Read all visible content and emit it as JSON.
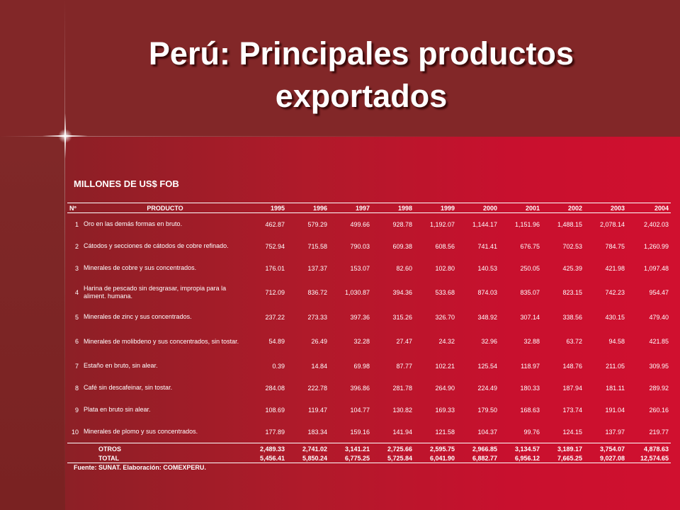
{
  "title_line1": "Perú: Principales productos",
  "title_line2": "exportados",
  "subtitle": "MILLONES DE US$ FOB",
  "table": {
    "headers": [
      "Nº",
      "PRODUCTO",
      "1995",
      "1996",
      "1997",
      "1998",
      "1999",
      "2000",
      "2001",
      "2002",
      "2003",
      "2004"
    ],
    "rows": [
      {
        "n": "1",
        "product": "Oro en las demás formas en bruto.",
        "values": [
          "462.87",
          "579.29",
          "499.66",
          "928.78",
          "1,192.07",
          "1,144.17",
          "1,151.96",
          "1,488.15",
          "2,078.14",
          "2,402.03"
        ]
      },
      {
        "n": "2",
        "product": "Cátodos y secciones de cátodos de cobre refinado.",
        "values": [
          "752.94",
          "715.58",
          "790.03",
          "609.38",
          "608.56",
          "741.41",
          "676.75",
          "702.53",
          "784.75",
          "1,260.99"
        ]
      },
      {
        "n": "3",
        "product": "Minerales de cobre y sus concentrados.",
        "values": [
          "176.01",
          "137.37",
          "153.07",
          "82.60",
          "102.80",
          "140.53",
          "250.05",
          "425.39",
          "421.98",
          "1,097.48"
        ]
      },
      {
        "n": "4",
        "product": "Harina de pescado sin desgrasar, impropia para la aliment. humana.",
        "values": [
          "712.09",
          "836.72",
          "1,030.87",
          "394.36",
          "533.68",
          "874.03",
          "835.07",
          "823.15",
          "742.23",
          "954.47"
        ]
      },
      {
        "n": "5",
        "product": "Minerales de zinc y sus concentrados.",
        "values": [
          "237.22",
          "273.33",
          "397.36",
          "315.26",
          "326.70",
          "348.92",
          "307.14",
          "338.56",
          "430.15",
          "479.40"
        ]
      },
      {
        "n": "6",
        "product": "Minerales de molibdeno y sus concentrados, sin tostar.",
        "values": [
          "54.89",
          "26.49",
          "32.28",
          "27.47",
          "24.32",
          "32.96",
          "32.88",
          "63.72",
          "94.58",
          "421.85"
        ]
      },
      {
        "n": "7",
        "product": "Estaño en bruto, sin alear.",
        "values": [
          "0.39",
          "14.84",
          "69.98",
          "87.77",
          "102.21",
          "125.54",
          "118.97",
          "148.76",
          "211.05",
          "309.95"
        ]
      },
      {
        "n": "8",
        "product": "Café sin descafeinar, sin tostar.",
        "values": [
          "284.08",
          "222.78",
          "396.86",
          "281.78",
          "264.90",
          "224.49",
          "180.33",
          "187.94",
          "181.11",
          "289.92"
        ]
      },
      {
        "n": "9",
        "product": "Plata en bruto sin alear.",
        "values": [
          "108.69",
          "119.47",
          "104.77",
          "130.82",
          "169.33",
          "179.50",
          "168.63",
          "173.74",
          "191.04",
          "260.16"
        ]
      },
      {
        "n": "10",
        "product": "Minerales de plomo y sus concentrados.",
        "values": [
          "177.89",
          "183.34",
          "159.16",
          "141.94",
          "121.58",
          "104.37",
          "99.76",
          "124.15",
          "137.97",
          "219.77"
        ]
      }
    ],
    "otros": {
      "label": "OTROS",
      "values": [
        "2,489.33",
        "2,741.02",
        "3,141.21",
        "2,725.66",
        "2,595.75",
        "2,966.85",
        "3,134.57",
        "3,189.17",
        "3,754.07",
        "4,878.63"
      ]
    },
    "total": {
      "label": "TOTAL",
      "values": [
        "5,456.41",
        "5,850.24",
        "6,775.25",
        "5,725.84",
        "6,041.90",
        "6,882.77",
        "6,956.12",
        "7,665.25",
        "9,027.08",
        "12,574.65"
      ]
    }
  },
  "source": "Fuente: SUNAT. Elaboración: COMEXPERU."
}
